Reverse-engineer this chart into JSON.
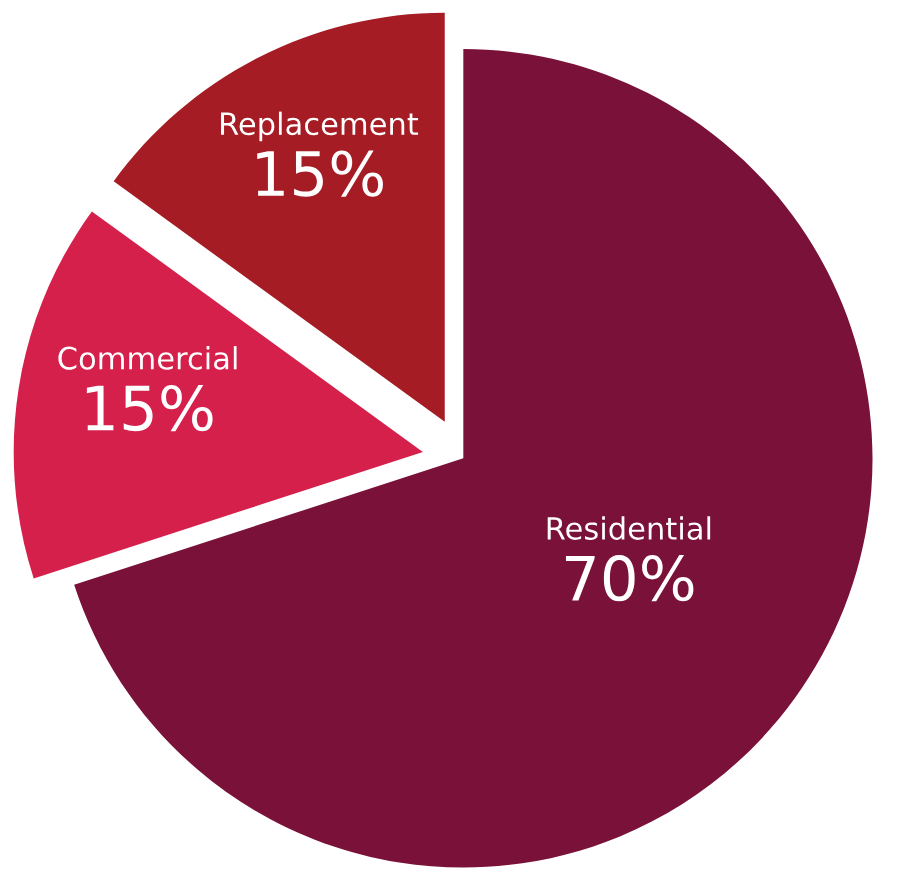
{
  "chart_data": {
    "type": "pie",
    "categories": [
      "Residential",
      "Commercial",
      "Replacement"
    ],
    "values": [
      70,
      15,
      15
    ],
    "value_labels": [
      "70%",
      "15%",
      "15%"
    ],
    "colors": [
      "#7a1138",
      "#d4204a",
      "#a51c24"
    ]
  }
}
